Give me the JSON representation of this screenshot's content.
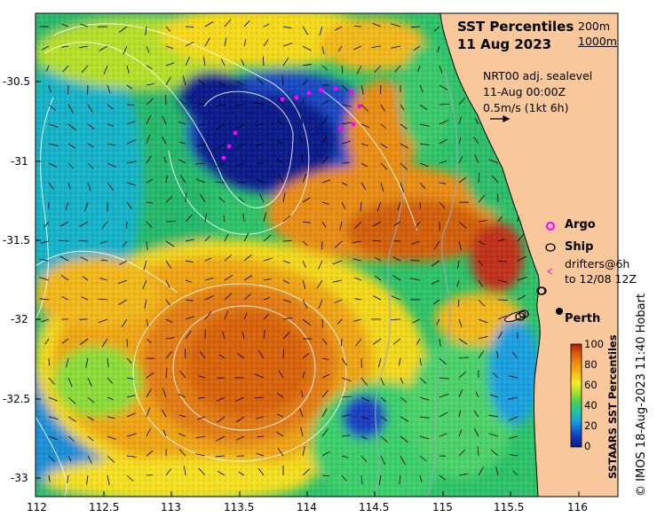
{
  "title": {
    "line1": "SST Percentiles",
    "line2": "11 Aug 2023"
  },
  "depth_contours": {
    "c1": "200m",
    "c2": "1000m"
  },
  "current_info": {
    "source": "NRT00 adj. sealevel",
    "time": "11-Aug 00:00Z",
    "scale": "0.5m/s (1kt 6h)"
  },
  "legend": {
    "argo": "Argo",
    "ship": "Ship",
    "drifters_line1": "drifters@6h",
    "drifters_line2": "to 12/08 12Z"
  },
  "city": "Perth",
  "colorbar": {
    "title": "SSTAARS SST Percentiles",
    "ticks": [
      "100",
      "80",
      "60",
      "40",
      "20",
      "0"
    ]
  },
  "credit": "© IMOS 18-Aug-2023 11:40 Hobart",
  "x_axis": [
    "112",
    "112.5",
    "113",
    "113.5",
    "114",
    "114.5",
    "115",
    "115.5",
    "116"
  ],
  "y_axis": [
    "-30.5",
    "-31",
    "-31.5",
    "-32",
    "-32.5",
    "-33"
  ],
  "colors": {
    "land": "#f8c79b",
    "argo": "#ff00ff",
    "ocean_low": "#0b1d8a",
    "ocean_high": "#c0331a"
  }
}
